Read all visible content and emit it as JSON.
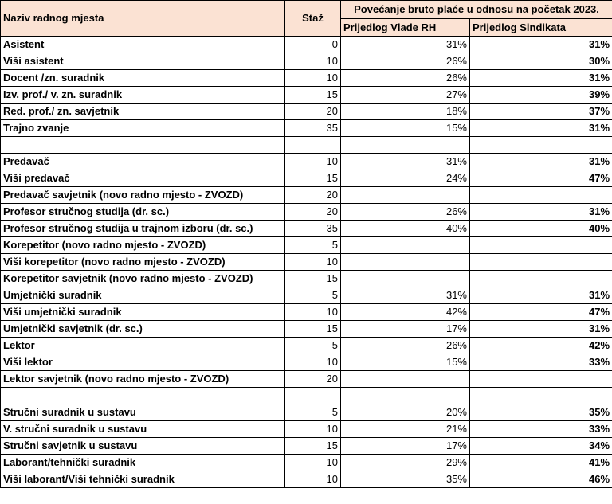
{
  "header": {
    "col_name": "Naziv radnog mjesta",
    "col_staz": "Staž",
    "col_group": "Povećanje bruto plaće u odnosu na početak 2023.",
    "col_vlada": "Prijedlog Vlade RH",
    "col_sindikat": "Prijedlog Sindikata"
  },
  "rows": [
    {
      "name": "Asistent",
      "staz": "0",
      "vlada": "31%",
      "sindikat": "31%"
    },
    {
      "name": "Viši asistent",
      "staz": "10",
      "vlada": "26%",
      "sindikat": "30%"
    },
    {
      "name": "Docent /zn. suradnik",
      "staz": "10",
      "vlada": "26%",
      "sindikat": "31%"
    },
    {
      "name": "Izv. prof./ v. zn. suradnik",
      "staz": "15",
      "vlada": "27%",
      "sindikat": "39%"
    },
    {
      "name": "Red. prof./ zn. savjetnik",
      "staz": "20",
      "vlada": "18%",
      "sindikat": "37%"
    },
    {
      "name": "Trajno zvanje",
      "staz": "35",
      "vlada": "15%",
      "sindikat": "31%"
    },
    {
      "name": "",
      "staz": "",
      "vlada": "",
      "sindikat": ""
    },
    {
      "name": "Predavač",
      "staz": "10",
      "vlada": "31%",
      "sindikat": "31%"
    },
    {
      "name": "Viši predavač",
      "staz": "15",
      "vlada": "24%",
      "sindikat": "47%"
    },
    {
      "name": "Predavač savjetnik (novo radno mjesto - ZVOZD)",
      "staz": "20",
      "vlada": "",
      "sindikat": ""
    },
    {
      "name": "Profesor stručnog studija (dr. sc.)",
      "staz": "20",
      "vlada": "26%",
      "sindikat": "31%"
    },
    {
      "name": "Profesor stručnog studija u trajnom izboru (dr. sc.)",
      "staz": "35",
      "vlada": "40%",
      "sindikat": "40%"
    },
    {
      "name": "Korepetitor (novo radno mjesto - ZVOZD)",
      "staz": "5",
      "vlada": "",
      "sindikat": ""
    },
    {
      "name": "Viši korepetitor (novo radno mjesto - ZVOZD)",
      "staz": "10",
      "vlada": "",
      "sindikat": ""
    },
    {
      "name": "Korepetitor savjetnik (novo radno mjesto - ZVOZD)",
      "staz": "15",
      "vlada": "",
      "sindikat": ""
    },
    {
      "name": "Umjetnički suradnik",
      "staz": "5",
      "vlada": "31%",
      "sindikat": "31%"
    },
    {
      "name": "Viši umjetnički suradnik",
      "staz": "10",
      "vlada": "42%",
      "sindikat": "47%"
    },
    {
      "name": "Umjetnički savjetnik (dr. sc.)",
      "staz": "15",
      "vlada": "17%",
      "sindikat": "31%"
    },
    {
      "name": "Lektor",
      "staz": "5",
      "vlada": "26%",
      "sindikat": "42%"
    },
    {
      "name": "Viši lektor",
      "staz": "10",
      "vlada": "15%",
      "sindikat": "33%"
    },
    {
      "name": "Lektor savjetnik (novo radno mjesto - ZVOZD)",
      "staz": "20",
      "vlada": "",
      "sindikat": ""
    },
    {
      "name": "",
      "staz": "",
      "vlada": "",
      "sindikat": ""
    },
    {
      "name": "Stručni suradnik u sustavu",
      "staz": "5",
      "vlada": "20%",
      "sindikat": "35%"
    },
    {
      "name": "V. stručni suradnik u sustavu",
      "staz": "10",
      "vlada": "21%",
      "sindikat": "33%"
    },
    {
      "name": "Stručni savjetnik u sustavu",
      "staz": "15",
      "vlada": "17%",
      "sindikat": "34%"
    },
    {
      "name": "Laborant/tehnički suradnik",
      "staz": "10",
      "vlada": "29%",
      "sindikat": "41%"
    },
    {
      "name": "Viši laborant/Viši tehnički suradnik",
      "staz": "10",
      "vlada": "35%",
      "sindikat": "46%"
    }
  ]
}
